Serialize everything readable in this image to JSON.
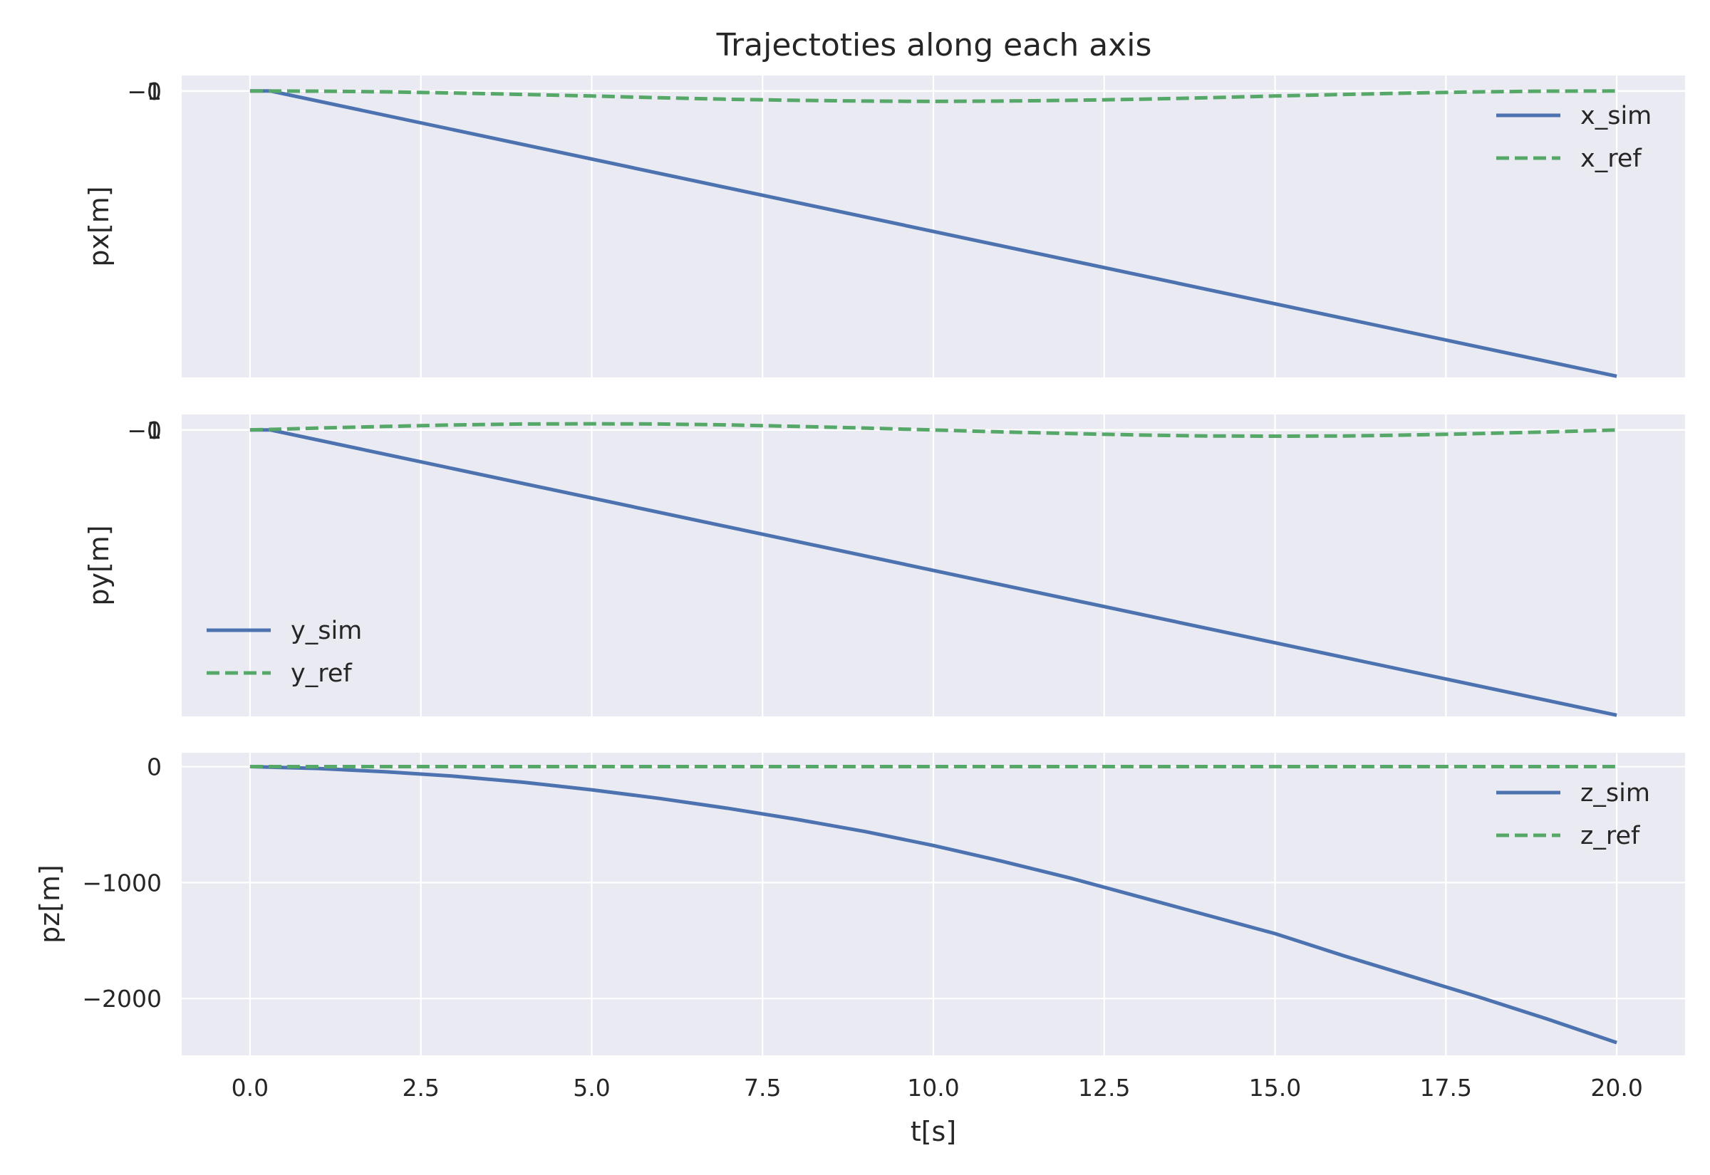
{
  "figure_title": "Trajectoties along each axis",
  "colors": {
    "background": "#eaeaf2",
    "grid": "#ffffff",
    "sim": "#4c72b0",
    "ref": "#55a868"
  },
  "chart_data": [
    {
      "type": "line",
      "title": "Trajectoties along each axis",
      "xlabel": "",
      "ylabel": "px[m]",
      "xlim": [
        -1,
        21
      ],
      "ylim": [
        -2400,
        130
      ],
      "x_ticks": [
        0,
        2.5,
        5,
        7.5,
        10,
        12.5,
        15,
        17.5,
        20
      ],
      "x_tick_labels": [
        "0.0",
        "2.5",
        "5.0",
        "7.5",
        "10.0",
        "12.5",
        "15.0",
        "17.5",
        "20.0"
      ],
      "y_ticks": [
        1,
        0,
        -1
      ],
      "y_tick_labels": [
        "1",
        "0",
        "−1"
      ],
      "grid": true,
      "legend_placement": "upper-right",
      "series": [
        {
          "name": "x_sim",
          "style": "solid",
          "x": [
            0,
            0.3,
            20
          ],
          "y": [
            0,
            0,
            -2390
          ]
        },
        {
          "name": "x_ref",
          "style": "dashed",
          "x": [
            0,
            1,
            2,
            3,
            4,
            5,
            6,
            7,
            8,
            9,
            10,
            11,
            12,
            13,
            14,
            15,
            16,
            17,
            18,
            19,
            20
          ],
          "y": [
            0,
            -1.5,
            -7.5,
            -17,
            -29,
            -42,
            -57,
            -69,
            -78,
            -84,
            -87,
            -84,
            -78,
            -69,
            -57,
            -42,
            -29,
            -17,
            -7.5,
            -1.5,
            0
          ]
        }
      ]
    },
    {
      "type": "line",
      "xlabel": "",
      "ylabel": "py[m]",
      "xlim": [
        -1,
        21
      ],
      "ylim": [
        -2400,
        130
      ],
      "x_ticks": [
        0,
        2.5,
        5,
        7.5,
        10,
        12.5,
        15,
        17.5,
        20
      ],
      "x_tick_labels": [
        "0.0",
        "2.5",
        "5.0",
        "7.5",
        "10.0",
        "12.5",
        "15.0",
        "17.5",
        "20.0"
      ],
      "y_ticks": [
        1,
        0,
        -1
      ],
      "y_tick_labels": [
        "1",
        "0",
        "−1"
      ],
      "grid": true,
      "legend_placement": "lower-left",
      "series": [
        {
          "name": "y_sim",
          "style": "solid",
          "x": [
            0,
            0.3,
            20
          ],
          "y": [
            0,
            0,
            -2390
          ]
        },
        {
          "name": "y_ref",
          "style": "dashed",
          "x": [
            0,
            1,
            2,
            3,
            4,
            5,
            6,
            7,
            8,
            9,
            10,
            11,
            12,
            13,
            14,
            15,
            16,
            17,
            18,
            19,
            20
          ],
          "y": [
            0,
            16,
            30,
            42,
            50,
            52,
            50,
            42,
            30,
            16,
            0,
            -16,
            -30,
            -42,
            -50,
            -52,
            -50,
            -42,
            -30,
            -16,
            0
          ]
        }
      ]
    },
    {
      "type": "line",
      "xlabel": "t[s]",
      "ylabel": "pz[m]",
      "xlim": [
        -1,
        21
      ],
      "ylim": [
        -2490,
        120
      ],
      "x_ticks": [
        0,
        2.5,
        5,
        7.5,
        10,
        12.5,
        15,
        17.5,
        20
      ],
      "x_tick_labels": [
        "0.0",
        "2.5",
        "5.0",
        "7.5",
        "10.0",
        "12.5",
        "15.0",
        "17.5",
        "20.0"
      ],
      "y_ticks": [
        0,
        -1000,
        -2000
      ],
      "y_tick_labels": [
        "0",
        "−1000",
        "−2000"
      ],
      "grid": true,
      "legend_placement": "upper-right",
      "series": [
        {
          "name": "z_sim",
          "style": "solid",
          "x": [
            0,
            1,
            2,
            3,
            4,
            5,
            6,
            7,
            8,
            9,
            10,
            11,
            12,
            13,
            14,
            15,
            16,
            17,
            18,
            19,
            20
          ],
          "y": [
            0,
            -16,
            -45,
            -83,
            -135,
            -200,
            -275,
            -360,
            -455,
            -560,
            -680,
            -815,
            -960,
            -1120,
            -1280,
            -1440,
            -1630,
            -1810,
            -1990,
            -2180,
            -2380
          ]
        },
        {
          "name": "z_ref",
          "style": "dashed",
          "x": [
            0,
            20
          ],
          "y": [
            0,
            0
          ]
        }
      ]
    }
  ]
}
